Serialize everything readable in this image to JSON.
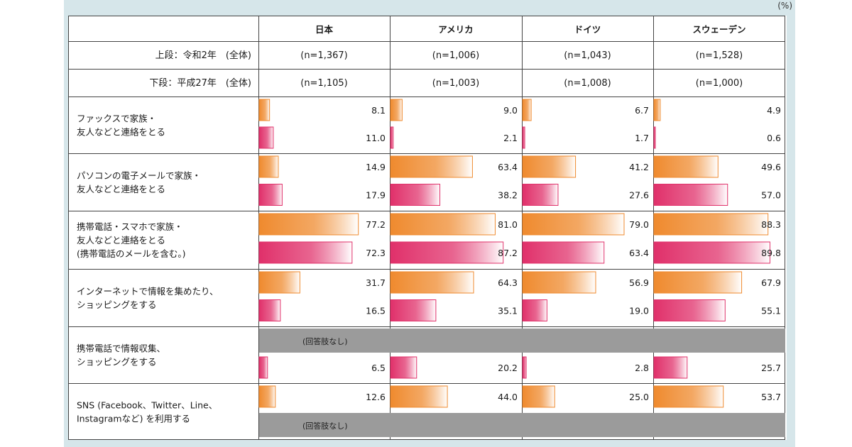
{
  "unit_label": "(%)",
  "header": {
    "countries": [
      "日本",
      "アメリカ",
      "ドイツ",
      "スウェーデン"
    ],
    "upper_label": "上段：令和2年　(全体)",
    "lower_label": "下段：平成27年　(全体)",
    "upper_n": [
      "(n=1,367)",
      "(n=1,006)",
      "(n=1,043)",
      "(n=1,528)"
    ],
    "lower_n": [
      "(n=1,105)",
      "(n=1,003)",
      "(n=1,008)",
      "(n=1,000)"
    ]
  },
  "no_option_note": "(回答肢なし)",
  "colors": {
    "upper_bar": "#ef8a2e",
    "lower_bar": "#e0306a",
    "no_option_fill": "#9b9b9b",
    "frame": "#d6e6ea"
  },
  "chart_data": {
    "type": "bar",
    "orientation": "horizontal",
    "categories": [
      [
        "ファックスで家族・",
        "友人などと連絡をとる"
      ],
      [
        "パソコンの電子メールで家族・",
        "友人などと連絡をとる"
      ],
      [
        "携帯電話・スマホで家族・",
        "友人などと連絡をとる",
        "(携帯電話のメールを含む。)"
      ],
      [
        "インターネットで情報を集めたり、",
        "ショッピングをする"
      ],
      [
        "携帯電話で情報収集、",
        "ショッピングをする"
      ],
      [
        "SNS (Facebook、Twitter、Line、",
        "Instagramなど) を利用する"
      ]
    ],
    "countries": [
      "日本",
      "アメリカ",
      "ドイツ",
      "スウェーデン"
    ],
    "series": [
      {
        "name": "上段：令和2年　(全体)",
        "values": [
          [
            8.1,
            9.0,
            6.7,
            4.9
          ],
          [
            14.9,
            63.4,
            41.2,
            49.6
          ],
          [
            77.2,
            81.0,
            79.0,
            88.3
          ],
          [
            31.7,
            64.3,
            56.9,
            67.9
          ],
          [
            null,
            null,
            null,
            null
          ],
          [
            12.6,
            44.0,
            25.0,
            53.7
          ]
        ],
        "labels": [
          [
            "8.1",
            "9.0",
            "6.7",
            "4.9"
          ],
          [
            "14.9",
            "63.4",
            "41.2",
            "49.6"
          ],
          [
            "77.2",
            "81.0",
            "79.0",
            "88.3"
          ],
          [
            "31.7",
            "64.3",
            "56.9",
            "67.9"
          ],
          [
            null,
            null,
            null,
            null
          ],
          [
            "12.6",
            "44.0",
            "25.0",
            "53.7"
          ]
        ]
      },
      {
        "name": "下段：平成27年　(全体)",
        "values": [
          [
            11.0,
            2.1,
            1.7,
            0.6
          ],
          [
            17.9,
            38.2,
            27.6,
            57.0
          ],
          [
            72.3,
            87.2,
            63.4,
            89.8
          ],
          [
            16.5,
            35.1,
            19.0,
            55.1
          ],
          [
            6.5,
            20.2,
            2.8,
            25.7
          ],
          [
            null,
            null,
            null,
            null
          ]
        ],
        "labels": [
          [
            "11.0",
            "2.1",
            "1.7",
            "0.6"
          ],
          [
            "17.9",
            "38.2",
            "27.6",
            "57.0"
          ],
          [
            "72.3",
            "87.2",
            "63.4",
            "89.8"
          ],
          [
            "16.5",
            "35.1",
            "19.0",
            "55.1"
          ],
          [
            "6.5",
            "20.2",
            "2.8",
            "25.7"
          ],
          [
            null,
            null,
            null,
            null
          ]
        ]
      }
    ],
    "xlim": [
      0,
      100
    ]
  }
}
